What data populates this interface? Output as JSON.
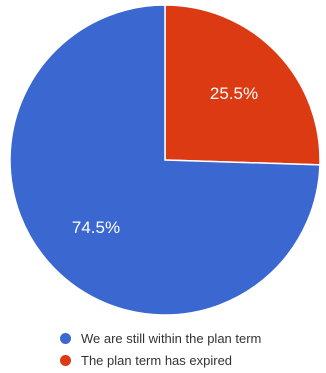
{
  "chart_data": {
    "type": "pie",
    "slices": [
      {
        "label": "We are still within the plan term",
        "value": 74.5,
        "display": "74.5%",
        "color": "#3b67d1"
      },
      {
        "label": "The plan term has expired",
        "value": 25.5,
        "display": "25.5%",
        "color": "#dc3a12"
      }
    ],
    "legend": "bottom-left"
  }
}
